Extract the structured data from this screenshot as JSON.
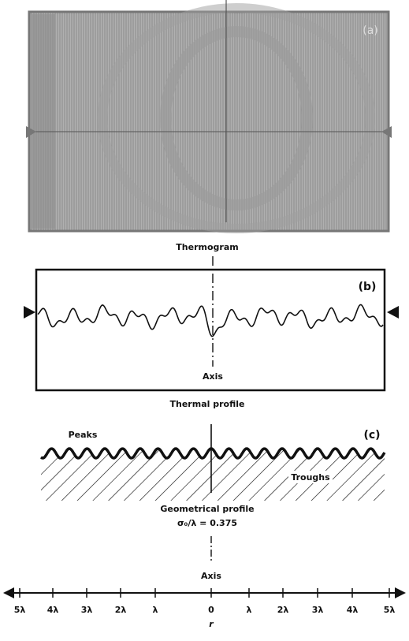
{
  "panel_a": {
    "label": "(a)",
    "caption": "Thermogram"
  },
  "panel_b": {
    "label": "(b)",
    "axis_label": "Axis",
    "caption": "Thermal profile"
  },
  "panel_c": {
    "label": "(c)",
    "peaks": "Peaks",
    "troughs": "Troughs",
    "caption": "Geometrical profile",
    "ratio": "σ₀/λ = 0.375",
    "axis_label": "Axis"
  },
  "r_axis": {
    "ticks": [
      "5λ",
      "4λ",
      "3λ",
      "2λ",
      "λ",
      "0",
      "λ",
      "2λ",
      "3λ",
      "4λ",
      "5λ"
    ],
    "label": "r"
  }
}
